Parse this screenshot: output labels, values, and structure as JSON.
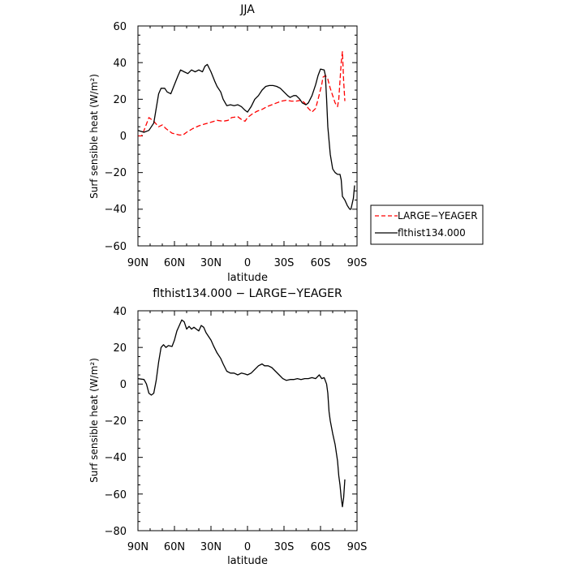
{
  "chart_data": [
    {
      "type": "line",
      "title": "JJA",
      "xlabel": "latitude",
      "ylabel": "Surf sensible heat (W/m²)",
      "xlim": [
        -90,
        90
      ],
      "ylim": [
        -60,
        60
      ],
      "x_ticks": [
        "90N",
        "60N",
        "30N",
        "0",
        "30S",
        "60S",
        "90S"
      ],
      "y_ticks": [
        "60",
        "40",
        "20",
        "0",
        "−20",
        "−40",
        "−60"
      ],
      "legend_placement": "right",
      "series": [
        {
          "name": "LARGE−YEAGER",
          "color": "#ff0000",
          "dash": "dashed",
          "points": [
            [
              -90,
              0
            ],
            [
              -87,
              0
            ],
            [
              -85,
              3
            ],
            [
              -81,
              10
            ],
            [
              -77,
              8
            ],
            [
              -73,
              5
            ],
            [
              -70,
              6
            ],
            [
              -67,
              4
            ],
            [
              -62,
              1.5
            ],
            [
              -56,
              0.5
            ],
            [
              -53,
              0.5
            ],
            [
              -50,
              2
            ],
            [
              -45,
              4
            ],
            [
              -40,
              5.5
            ],
            [
              -35,
              6.5
            ],
            [
              -30,
              7.5
            ],
            [
              -25,
              8.5
            ],
            [
              -20,
              8
            ],
            [
              -16,
              8.5
            ],
            [
              -13,
              10
            ],
            [
              -8,
              10.5
            ],
            [
              -5,
              9
            ],
            [
              -2,
              8
            ],
            [
              0,
              10
            ],
            [
              4,
              12
            ],
            [
              8,
              13.5
            ],
            [
              12,
              14.5
            ],
            [
              16,
              16
            ],
            [
              20,
              17
            ],
            [
              24,
              18
            ],
            [
              28,
              19
            ],
            [
              32,
              19.5
            ],
            [
              36,
              19
            ],
            [
              40,
              19
            ],
            [
              44,
              19.5
            ],
            [
              47,
              18
            ],
            [
              50,
              15
            ],
            [
              53,
              13
            ],
            [
              56,
              15
            ],
            [
              58,
              20
            ],
            [
              61,
              28
            ],
            [
              62,
              32
            ],
            [
              64,
              33
            ],
            [
              66,
              31
            ],
            [
              68,
              26
            ],
            [
              70,
              22
            ],
            [
              72,
              18
            ],
            [
              74,
              16
            ],
            [
              75,
              20
            ],
            [
              76,
              30
            ],
            [
              77,
              40
            ],
            [
              78,
              46
            ],
            [
              79,
              30
            ],
            [
              80,
              19
            ]
          ]
        },
        {
          "name": "flthist134.000",
          "color": "#000000",
          "dash": "solid",
          "points": [
            [
              -90,
              3
            ],
            [
              -85,
              2
            ],
            [
              -81,
              3
            ],
            [
              -77,
              7
            ],
            [
              -75,
              15
            ],
            [
              -73,
              23
            ],
            [
              -71,
              26
            ],
            [
              -68,
              26
            ],
            [
              -66,
              24
            ],
            [
              -63,
              23
            ],
            [
              -60,
              28
            ],
            [
              -57,
              33
            ],
            [
              -55,
              36
            ],
            [
              -52,
              35
            ],
            [
              -49,
              34
            ],
            [
              -46,
              36
            ],
            [
              -43,
              35
            ],
            [
              -40,
              36
            ],
            [
              -37,
              35
            ],
            [
              -35,
              38
            ],
            [
              -33,
              39
            ],
            [
              -30,
              35
            ],
            [
              -27,
              30
            ],
            [
              -25,
              27
            ],
            [
              -22,
              24
            ],
            [
              -20,
              20
            ],
            [
              -17,
              16.5
            ],
            [
              -14,
              17
            ],
            [
              -11,
              16.5
            ],
            [
              -8,
              17
            ],
            [
              -5,
              16
            ],
            [
              -2,
              14
            ],
            [
              0,
              13
            ],
            [
              3,
              16
            ],
            [
              6,
              20
            ],
            [
              9,
              22
            ],
            [
              12,
              25
            ],
            [
              15,
              27
            ],
            [
              18,
              27.5
            ],
            [
              21,
              27.5
            ],
            [
              24,
              27
            ],
            [
              27,
              26
            ],
            [
              30,
              24
            ],
            [
              33,
              22
            ],
            [
              35,
              21
            ],
            [
              38,
              22
            ],
            [
              40,
              22
            ],
            [
              43,
              20
            ],
            [
              45,
              18
            ],
            [
              48,
              17
            ],
            [
              50,
              18
            ],
            [
              53,
              22
            ],
            [
              56,
              28
            ],
            [
              58,
              33
            ],
            [
              60,
              36.5
            ],
            [
              63,
              36
            ],
            [
              64,
              33
            ],
            [
              65,
              20
            ],
            [
              66,
              5
            ],
            [
              68,
              -10
            ],
            [
              70,
              -18
            ],
            [
              72,
              -20
            ],
            [
              74,
              -21
            ],
            [
              76,
              -21
            ],
            [
              77,
              -24
            ],
            [
              78,
              -33
            ],
            [
              80,
              -35
            ],
            [
              82,
              -38
            ],
            [
              84,
              -40
            ],
            [
              85,
              -40
            ],
            [
              87,
              -34
            ],
            [
              88,
              -27
            ]
          ]
        }
      ]
    },
    {
      "type": "line",
      "title": "flthist134.000 − LARGE−YEAGER",
      "xlabel": "latitude",
      "ylabel": "Surf sensible heat (W/m²)",
      "xlim": [
        -90,
        90
      ],
      "ylim": [
        -80,
        40
      ],
      "x_ticks": [
        "90N",
        "60N",
        "30N",
        "0",
        "30S",
        "60S",
        "90S"
      ],
      "y_ticks": [
        "40",
        "20",
        "0",
        "−20",
        "−40",
        "−60",
        "−80"
      ],
      "series": [
        {
          "color": "#000000",
          "dash": "solid",
          "points": [
            [
              -90,
              3
            ],
            [
              -85,
              2.5
            ],
            [
              -83,
              0
            ],
            [
              -81,
              -5
            ],
            [
              -79,
              -6
            ],
            [
              -77,
              -5
            ],
            [
              -75,
              2
            ],
            [
              -73,
              12
            ],
            [
              -71,
              20
            ],
            [
              -69,
              21.5
            ],
            [
              -67,
              20
            ],
            [
              -65,
              21
            ],
            [
              -62,
              20.5
            ],
            [
              -60,
              24
            ],
            [
              -58,
              29
            ],
            [
              -56,
              32
            ],
            [
              -54,
              35
            ],
            [
              -52,
              34
            ],
            [
              -50,
              30
            ],
            [
              -48,
              31.5
            ],
            [
              -46,
              30
            ],
            [
              -44,
              31
            ],
            [
              -42,
              30
            ],
            [
              -40,
              29
            ],
            [
              -38,
              32
            ],
            [
              -36,
              31
            ],
            [
              -34,
              28
            ],
            [
              -32,
              26
            ],
            [
              -30,
              24
            ],
            [
              -28,
              21
            ],
            [
              -25,
              17
            ],
            [
              -22,
              14
            ],
            [
              -20,
              11
            ],
            [
              -17,
              7
            ],
            [
              -14,
              6
            ],
            [
              -11,
              6
            ],
            [
              -8,
              5
            ],
            [
              -5,
              6
            ],
            [
              -2,
              5.5
            ],
            [
              0,
              5
            ],
            [
              3,
              6
            ],
            [
              6,
              8
            ],
            [
              9,
              10
            ],
            [
              12,
              11
            ],
            [
              14,
              10
            ],
            [
              17,
              10
            ],
            [
              20,
              9
            ],
            [
              23,
              7
            ],
            [
              26,
              5
            ],
            [
              29,
              3
            ],
            [
              32,
              2
            ],
            [
              35,
              2.5
            ],
            [
              38,
              2.5
            ],
            [
              41,
              3
            ],
            [
              44,
              2.5
            ],
            [
              47,
              3
            ],
            [
              50,
              3
            ],
            [
              53,
              3.5
            ],
            [
              56,
              3
            ],
            [
              59,
              5
            ],
            [
              61,
              3
            ],
            [
              63,
              3.5
            ],
            [
              65,
              0
            ],
            [
              66,
              -5
            ],
            [
              67,
              -15
            ],
            [
              68,
              -20
            ],
            [
              70,
              -27
            ],
            [
              72,
              -33
            ],
            [
              74,
              -42
            ],
            [
              75,
              -50
            ],
            [
              76,
              -55
            ],
            [
              77,
              -62
            ],
            [
              78,
              -67
            ],
            [
              79,
              -62
            ],
            [
              80,
              -52
            ]
          ]
        }
      ]
    }
  ]
}
